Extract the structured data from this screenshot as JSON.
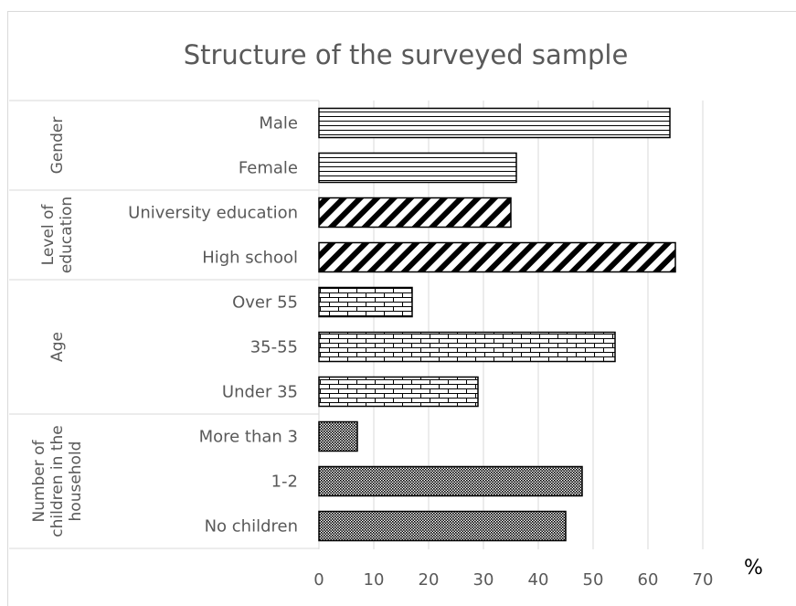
{
  "chart_data": {
    "type": "bar",
    "orientation": "horizontal",
    "title": "Structure of the surveyed sample",
    "xlabel": "%",
    "ylabel": "",
    "xlim": [
      0,
      70
    ],
    "xticks": [
      0,
      10,
      20,
      30,
      40,
      50,
      60,
      70
    ],
    "grid": true,
    "legend": "none",
    "groups": [
      {
        "name": "Gender",
        "name_lines": [
          "Gender"
        ],
        "pattern": "horizontal-lines",
        "items": [
          {
            "category": "Male",
            "value": 64
          },
          {
            "category": "Female",
            "value": 36
          }
        ]
      },
      {
        "name": "Level of education",
        "name_lines": [
          "Level of",
          "education"
        ],
        "pattern": "diagonal-stripes",
        "items": [
          {
            "category": "University education",
            "value": 35
          },
          {
            "category": "High school",
            "value": 65
          }
        ]
      },
      {
        "name": "Age",
        "name_lines": [
          "Age"
        ],
        "pattern": "brick",
        "items": [
          {
            "category": "Over 55",
            "value": 17
          },
          {
            "category": "35-55",
            "value": 54
          },
          {
            "category": "Under 35",
            "value": 29
          }
        ]
      },
      {
        "name": "Number of children in the household",
        "name_lines": [
          "Number of",
          "children in the",
          "household"
        ],
        "pattern": "dots",
        "items": [
          {
            "category": "More than 3",
            "value": 7
          },
          {
            "category": "1-2",
            "value": 48
          },
          {
            "category": "No children",
            "value": 45
          }
        ]
      }
    ]
  }
}
